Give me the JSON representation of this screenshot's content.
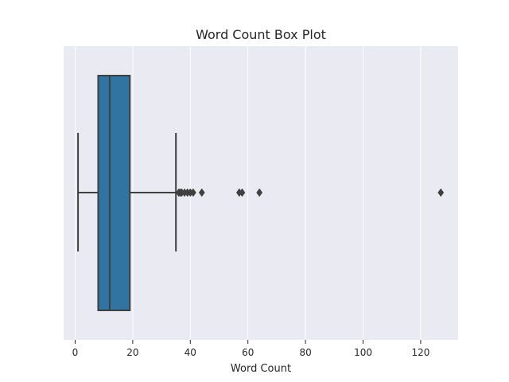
{
  "chart_data": {
    "type": "box",
    "title": "Word Count Box Plot",
    "xlabel": "Word Count",
    "ylabel": "",
    "orientation": "horizontal",
    "xlim": [
      -4,
      133
    ],
    "x_ticks": [
      0,
      20,
      40,
      60,
      80,
      100,
      120
    ],
    "x_tick_labels": [
      "0",
      "20",
      "40",
      "60",
      "80",
      "100",
      "120"
    ],
    "grid": true,
    "box": {
      "whisker_low": 1,
      "q1": 8,
      "median": 12,
      "q3": 19,
      "whisker_high": 35
    },
    "outliers": [
      36,
      36.5,
      37,
      38,
      39,
      40,
      41,
      44,
      57,
      58,
      64,
      127
    ],
    "colors": {
      "background": "#eaeaf2",
      "box_fill": "#3274a1",
      "line": "#3f3f3f",
      "grid": "#ffffff"
    }
  }
}
